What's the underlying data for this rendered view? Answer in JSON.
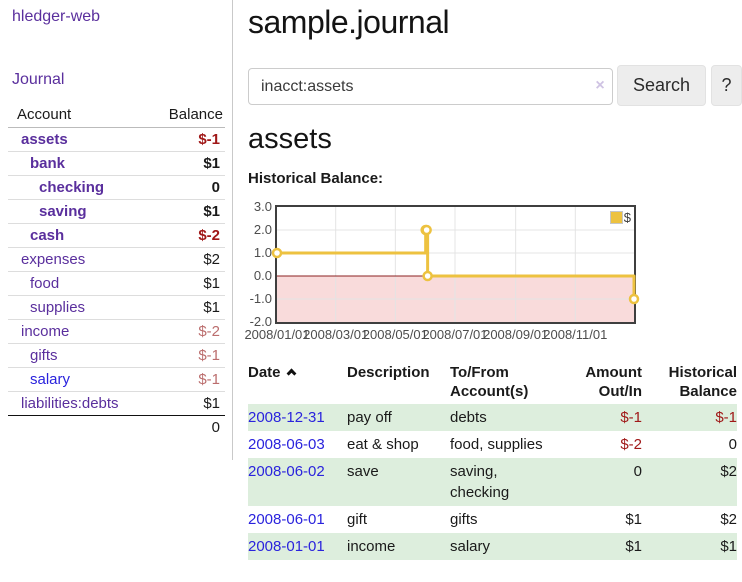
{
  "sidebar": {
    "app_title": "hledger-web",
    "journal_label": "Journal",
    "accounts_table": {
      "headers": {
        "account": "Account",
        "balance": "Balance"
      },
      "rows": [
        {
          "name": "assets",
          "balance": "$-1",
          "depth": 0,
          "bold": true,
          "unvisited": false
        },
        {
          "name": "bank",
          "balance": "$1",
          "depth": 1,
          "bold": true,
          "unvisited": false
        },
        {
          "name": "checking",
          "balance": "0",
          "depth": 2,
          "bold": true,
          "unvisited": false
        },
        {
          "name": "saving",
          "balance": "$1",
          "depth": 2,
          "bold": true,
          "unvisited": false
        },
        {
          "name": "cash",
          "balance": "$-2",
          "depth": 1,
          "bold": true,
          "unvisited": false
        },
        {
          "name": "expenses",
          "balance": "$2",
          "depth": 0,
          "bold": false,
          "unvisited": false
        },
        {
          "name": "food",
          "balance": "$1",
          "depth": 1,
          "bold": false,
          "unvisited": false
        },
        {
          "name": "supplies",
          "balance": "$1",
          "depth": 1,
          "bold": false,
          "unvisited": false
        },
        {
          "name": "income",
          "balance": "$-2",
          "depth": 0,
          "bold": false,
          "unvisited": false
        },
        {
          "name": "gifts",
          "balance": "$-1",
          "depth": 1,
          "bold": false,
          "unvisited": false
        },
        {
          "name": "salary",
          "balance": "$-1",
          "depth": 1,
          "bold": false,
          "unvisited": true
        },
        {
          "name": "liabilities:debts",
          "balance": "$1",
          "depth": 0,
          "bold": false,
          "unvisited": false
        }
      ],
      "total": "0"
    }
  },
  "header": {
    "title": "sample.journal"
  },
  "search": {
    "value": "inacct:assets",
    "clear_icon": "×",
    "button_label": "Search",
    "help_label": "?"
  },
  "account_page": {
    "heading": "assets",
    "chart_label": "Historical Balance:"
  },
  "chart_data": {
    "type": "line",
    "title": "Historical Balance",
    "step": true,
    "series": [
      {
        "name": "$",
        "color": "#edc240",
        "points": [
          [
            "2008-01-01",
            1
          ],
          [
            "2008-06-01",
            2
          ],
          [
            "2008-06-02",
            2
          ],
          [
            "2008-06-03",
            0
          ],
          [
            "2008-12-31",
            -1
          ]
        ]
      }
    ],
    "x_range": [
      "2008-01-01",
      "2008-12-31"
    ],
    "ylim": [
      -2,
      3
    ],
    "x_ticks": [
      "2008/01/01",
      "2008/03/01",
      "2008/05/01",
      "2008/07/01",
      "2008/09/01",
      "2008/11/01"
    ],
    "y_ticks": [
      "3.0",
      "2.0",
      "1.0",
      "0.0",
      "-1.0",
      "-2.0"
    ],
    "legend_position": "top-right",
    "grid": true,
    "grid_color": "#e4e4e4",
    "negative_region_color": "#f9dbdb",
    "zero_line_color": "#8b2020",
    "border_color": "#3f3f3f"
  },
  "register": {
    "headers": {
      "date": "Date",
      "description": "Description",
      "accounts": "To/From Account(s)",
      "amount": "Amount Out/In",
      "balance": "Historical Balance"
    },
    "sort_indicator": "up",
    "rows": [
      {
        "date": "2008-12-31",
        "description": "pay off",
        "accounts": "debts",
        "amount": "$-1",
        "balance": "$-1"
      },
      {
        "date": "2008-06-03",
        "description": "eat & shop",
        "accounts": "food, supplies",
        "amount": "$-2",
        "balance": "0"
      },
      {
        "date": "2008-06-02",
        "description": "save",
        "accounts": "saving, checking",
        "amount": "0",
        "balance": "$2"
      },
      {
        "date": "2008-06-01",
        "description": "gift",
        "accounts": "gifts",
        "amount": "$1",
        "balance": "$2"
      },
      {
        "date": "2008-01-01",
        "description": "income",
        "accounts": "salary",
        "amount": "$1",
        "balance": "$1"
      }
    ]
  },
  "colors": {
    "link_purple": "#5a2f9d",
    "link_blue": "#2a23dd",
    "negative_strong": "#a01818",
    "negative_soft": "#bb6d6d",
    "row_green": "#ddeedd",
    "series_gold": "#edc240",
    "negative_region_pink": "#f9dbdb"
  }
}
